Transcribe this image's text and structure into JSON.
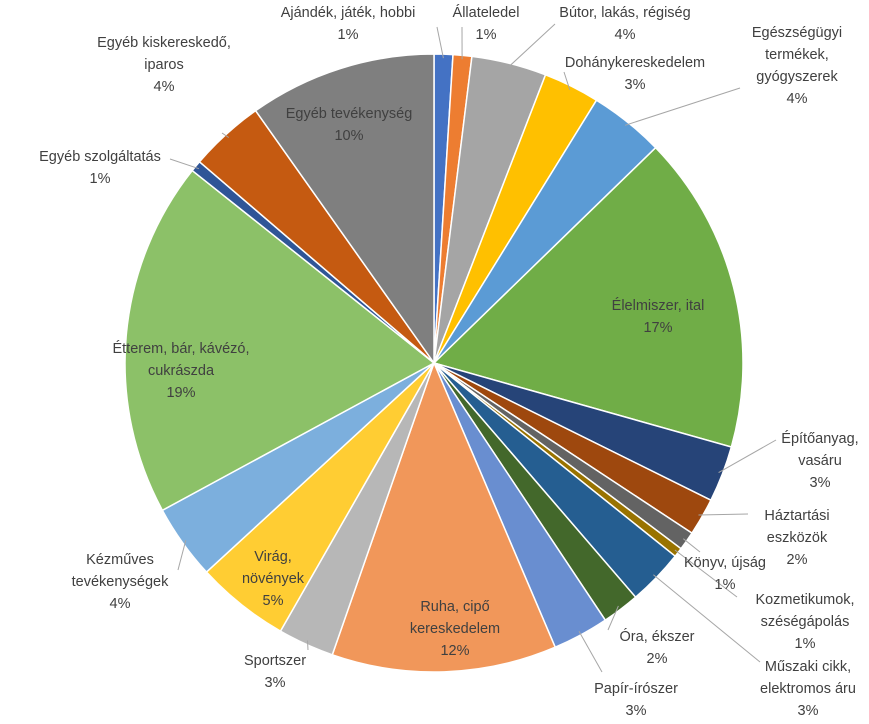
{
  "chart_data": {
    "type": "pie",
    "start_angle_deg": 0,
    "direction": "clockwise",
    "slices": [
      {
        "label": "Ajándék, játék, hobbi",
        "lines": [
          "Ajándék, játék, hobbi"
        ],
        "value": 1,
        "pct_label": "1%",
        "color": "#4472C4",
        "label_pos": "outside"
      },
      {
        "label": "Állateledel",
        "lines": [
          "Állateledel"
        ],
        "value": 1,
        "pct_label": "1%",
        "color": "#ED7D31",
        "label_pos": "outside"
      },
      {
        "label": "Bútor, lakás, régiség",
        "lines": [
          "Bútor, lakás, régiség"
        ],
        "value": 4,
        "pct_label": "4%",
        "color": "#A5A5A5",
        "label_pos": "outside"
      },
      {
        "label": "Dohánykereskedelem",
        "lines": [
          "Dohánykereskedelem"
        ],
        "value": 3,
        "pct_label": "3%",
        "color": "#FFC000",
        "label_pos": "outside"
      },
      {
        "label": "Egészségügyi termékek, gyógyszerek",
        "lines": [
          "Egészségügyi",
          "termékek,",
          "gyógyszerek"
        ],
        "value": 4,
        "pct_label": "4%",
        "color": "#5B9BD5",
        "label_pos": "outside"
      },
      {
        "label": "Élelmiszer, ital",
        "lines": [
          "Élelmiszer, ital"
        ],
        "value": 17,
        "pct_label": "17%",
        "color": "#70AD47",
        "label_pos": "inside"
      },
      {
        "label": "Építőanyag, vasáru",
        "lines": [
          "Építőanyag,",
          "vasáru"
        ],
        "value": 3,
        "pct_label": "3%",
        "color": "#264478",
        "label_pos": "outside"
      },
      {
        "label": "Háztartási eszközök",
        "lines": [
          "Háztartási",
          "eszközök"
        ],
        "value": 2,
        "pct_label": "2%",
        "color": "#9E480E",
        "label_pos": "outside"
      },
      {
        "label": "Könyv, újság",
        "lines": [
          "Könyv, újság"
        ],
        "value": 1,
        "pct_label": "1%",
        "color": "#636363",
        "label_pos": "outside"
      },
      {
        "label": "Kozmetikumok, szészégápolás",
        "lines": [
          "Kozmetikumok,",
          "széségápolás"
        ],
        "value": 0.5,
        "pct_label": "1%",
        "color": "#997300",
        "label_pos": "outside"
      },
      {
        "label": "Műszaki cikk, elektromos áru",
        "lines": [
          "Műszaki cikk,",
          "elektromos áru"
        ],
        "value": 3,
        "pct_label": "3%",
        "color": "#255E91",
        "label_pos": "outside"
      },
      {
        "label": "Óra, ékszer",
        "lines": [
          "Óra, ékszer"
        ],
        "value": 2,
        "pct_label": "2%",
        "color": "#43682B",
        "label_pos": "outside"
      },
      {
        "label": "Papír-írószer",
        "lines": [
          "Papír-írószer"
        ],
        "value": 3,
        "pct_label": "3%",
        "color": "#698ED0",
        "label_pos": "outside"
      },
      {
        "label": "Ruha, cipő kereskedelem",
        "lines": [
          "Ruha, cipő",
          "kereskedelem"
        ],
        "value": 12,
        "pct_label": "12%",
        "color": "#F1975A",
        "label_pos": "inside"
      },
      {
        "label": "Sportszer",
        "lines": [
          "Sportszer"
        ],
        "value": 3,
        "pct_label": "3%",
        "color": "#B7B7B7",
        "label_pos": "outside"
      },
      {
        "label": "Virág, növények",
        "lines": [
          "Virág,",
          "növények"
        ],
        "value": 5,
        "pct_label": "5%",
        "color": "#FFCD33",
        "label_pos": "inside"
      },
      {
        "label": "Kézműves tevékenységek",
        "lines": [
          "Kézműves",
          "tevékenységek"
        ],
        "value": 4,
        "pct_label": "4%",
        "color": "#7CAFDD",
        "label_pos": "outside"
      },
      {
        "label": "Étterem, bár, kávézó, cukrászda",
        "lines": [
          "Étterem, bár, kávézó,",
          "cukrászda"
        ],
        "value": 19,
        "pct_label": "19%",
        "color": "#8CC168",
        "label_pos": "inside"
      },
      {
        "label": "Egyéb szolgáltatás",
        "lines": [
          "Egyéb szolgáltatás"
        ],
        "value": 0.6,
        "pct_label": "1%",
        "color": "#2F5597",
        "label_pos": "outside"
      },
      {
        "label": "Egyéb kiskereskedő, iparos",
        "lines": [
          "Egyéb kiskereskedő,",
          "iparos"
        ],
        "value": 4,
        "pct_label": "4%",
        "color": "#C55A11",
        "label_pos": "outside"
      },
      {
        "label": "Egyéb tevékenység",
        "lines": [
          "Egyéb tevékenység"
        ],
        "value": 10,
        "pct_label": "10%",
        "color": "#7F7F7F",
        "label_pos": "inside"
      }
    ],
    "legend": "none"
  }
}
